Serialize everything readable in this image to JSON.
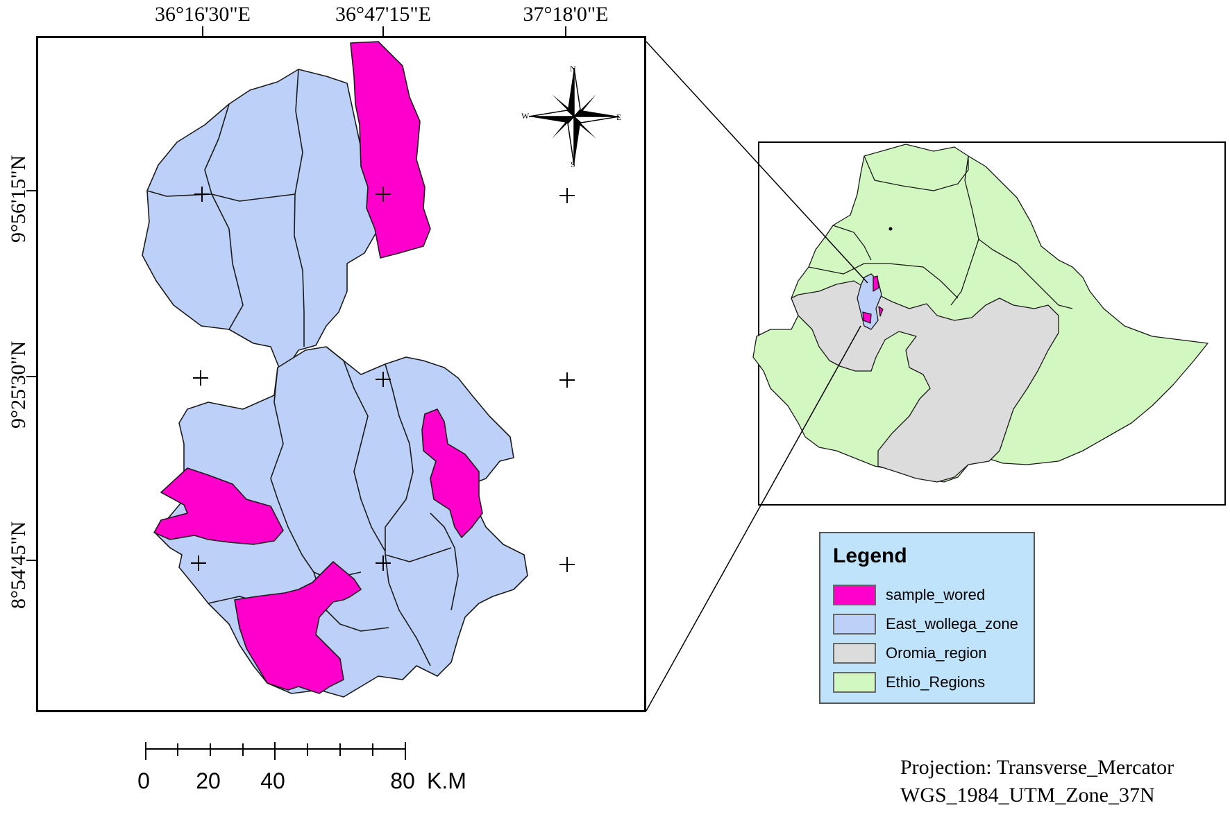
{
  "top_coordinates": [
    "36°16'30\"E",
    "36°47'15\"E",
    "37°18'0\"E"
  ],
  "left_coordinates": [
    "9°56'15\"N",
    "9°25'30\"N",
    "8°54'45\"N"
  ],
  "north_arrow": {
    "n": "N",
    "s": "S",
    "e": "E",
    "w": "W"
  },
  "legend": {
    "title": "Legend",
    "items": [
      {
        "label": "sample_wored",
        "color": "#ff00cc"
      },
      {
        "label": "East_wollega_zone",
        "color": "#bdd0f7"
      },
      {
        "label": "Oromia_region",
        "color": "#dcdcdc"
      },
      {
        "label": "Ethio_Regions",
        "color": "#d3f7c0"
      }
    ]
  },
  "scale_bar": {
    "ticks": [
      "0",
      "20",
      "40",
      "80"
    ],
    "unit": "K.M"
  },
  "projection": {
    "line1": "Projection: Transverse_Mercator",
    "line2": "WGS_1984_UTM_Zone_37N"
  },
  "colors": {
    "sample": "#ff00cc",
    "zone": "#bdd0f7",
    "oromia": "#dcdcdc",
    "regions": "#d3f7c0"
  }
}
